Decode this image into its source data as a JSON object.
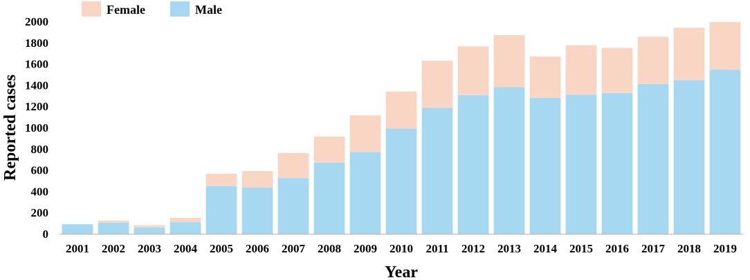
{
  "chart_data": {
    "type": "bar",
    "stacked": true,
    "title": "",
    "xlabel": "Year",
    "ylabel": "Reported  cases",
    "ylim": [
      0,
      2000
    ],
    "yticks": [
      "0",
      "200",
      "400",
      "600",
      "800",
      "1000",
      "1200",
      "1400",
      "1600",
      "1800",
      "2000"
    ],
    "grid": false,
    "legend_position": "top-left",
    "categories": [
      "2001",
      "2002",
      "2003",
      "2004",
      "2005",
      "2006",
      "2007",
      "2008",
      "2009",
      "2010",
      "2011",
      "2012",
      "2013",
      "2014",
      "2015",
      "2016",
      "2017",
      "2018",
      "2019"
    ],
    "series": [
      {
        "name": "Male",
        "color": "#a6d8f2",
        "values": [
          90,
          105,
          60,
          110,
          450,
          435,
          525,
          670,
          770,
          990,
          1185,
          1305,
          1380,
          1280,
          1310,
          1325,
          1410,
          1445,
          1545
        ]
      },
      {
        "name": "Female",
        "color": "#f9d6c4",
        "values": [
          0,
          20,
          20,
          40,
          115,
          155,
          235,
          245,
          345,
          350,
          445,
          460,
          490,
          390,
          465,
          425,
          445,
          495,
          450
        ]
      }
    ],
    "legend_order": [
      "Female",
      "Male"
    ]
  }
}
